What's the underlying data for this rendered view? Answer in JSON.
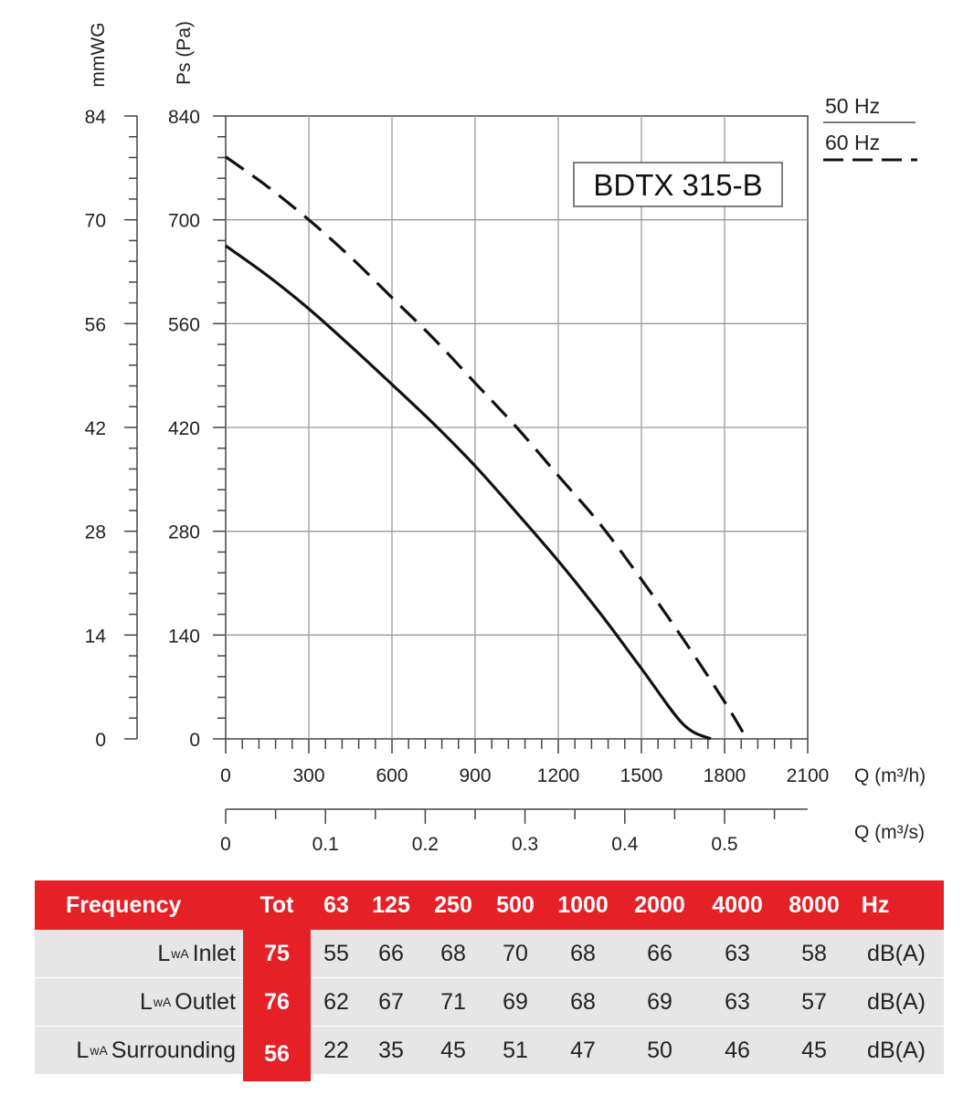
{
  "chart_data": {
    "type": "line",
    "model": "BDTX 315-B",
    "y_left_label": "mmWG",
    "y_label": "Ps (Pa)",
    "x_label": "Q (m³/h)",
    "x2_label": "Q (m³/s)",
    "xlim": [
      0,
      2100
    ],
    "ylim": [
      0,
      840
    ],
    "y_left_ticks": [
      "84",
      "70",
      "56",
      "42",
      "28",
      "14",
      "0"
    ],
    "y_ticks": [
      "840",
      "700",
      "560",
      "420",
      "280",
      "140",
      "0"
    ],
    "x_ticks": [
      "0",
      "300",
      "600",
      "900",
      "1200",
      "1500",
      "1800",
      "2100"
    ],
    "x2_ticks": [
      "0",
      "0.1",
      "0.2",
      "0.3",
      "0.4",
      "0.5"
    ],
    "legend": [
      {
        "label": "50 Hz",
        "style": "solid"
      },
      {
        "label": "60 Hz",
        "style": "dashed"
      }
    ],
    "grid": true,
    "series": [
      {
        "style": "solid",
        "x": [
          0,
          150,
          300,
          450,
          600,
          750,
          900,
          1050,
          1200,
          1350,
          1500,
          1650,
          1750
        ],
        "y": [
          665,
          625,
          580,
          530,
          478,
          425,
          368,
          305,
          240,
          170,
          95,
          20,
          0
        ]
      },
      {
        "style": "dashed",
        "x": [
          0,
          150,
          300,
          450,
          600,
          750,
          900,
          1050,
          1200,
          1350,
          1500,
          1650,
          1800,
          1880
        ],
        "y": [
          785,
          745,
          700,
          650,
          595,
          540,
          480,
          420,
          355,
          290,
          215,
          135,
          50,
          0
        ]
      }
    ]
  },
  "table": {
    "header": {
      "label": "Frequency",
      "tot": "Tot",
      "bands": [
        "63",
        "125",
        "250",
        "500",
        "1000",
        "2000",
        "4000",
        "8000"
      ],
      "unit": "Hz"
    },
    "rows": [
      {
        "prefix": "L",
        "sub": "wA",
        "suffix": "Inlet",
        "tot": "75",
        "values": [
          "55",
          "66",
          "68",
          "70",
          "68",
          "66",
          "63",
          "58"
        ],
        "unit": "dB(A)"
      },
      {
        "prefix": "L",
        "sub": "wA",
        "suffix": "Outlet",
        "tot": "76",
        "values": [
          "62",
          "67",
          "71",
          "69",
          "68",
          "69",
          "63",
          "57"
        ],
        "unit": "dB(A)"
      },
      {
        "prefix": "L",
        "sub": "wA",
        "suffix": "Surrounding",
        "tot": "56",
        "values": [
          "22",
          "35",
          "45",
          "51",
          "47",
          "50",
          "46",
          "45"
        ],
        "unit": "dB(A)"
      }
    ]
  }
}
